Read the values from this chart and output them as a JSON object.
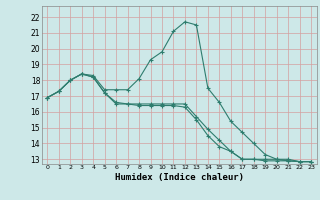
{
  "xlabel": "Humidex (Indice chaleur)",
  "background_color": "#cde8e8",
  "grid_color": "#d4a0a0",
  "line_color": "#2e7d6e",
  "xlim": [
    -0.5,
    23.5
  ],
  "ylim": [
    12.7,
    22.7
  ],
  "yticks": [
    13,
    14,
    15,
    16,
    17,
    18,
    19,
    20,
    21,
    22
  ],
  "xticks": [
    0,
    1,
    2,
    3,
    4,
    5,
    6,
    7,
    8,
    9,
    10,
    11,
    12,
    13,
    14,
    15,
    16,
    17,
    18,
    19,
    20,
    21,
    22,
    23
  ],
  "series": [
    {
      "x": [
        0,
        1,
        2,
        3,
        4,
        5,
        6,
        7,
        8,
        9,
        10,
        11,
        12,
        13,
        14,
        15,
        16,
        17,
        18,
        19,
        20,
        21,
        22,
        23
      ],
      "y": [
        16.9,
        17.3,
        18.0,
        18.4,
        18.3,
        17.4,
        17.4,
        17.4,
        18.1,
        19.3,
        19.8,
        21.1,
        21.7,
        21.5,
        17.5,
        16.6,
        15.4,
        14.7,
        14.0,
        13.3,
        13.0,
        12.9,
        12.85,
        12.85
      ]
    },
    {
      "x": [
        0,
        1,
        2,
        3,
        4,
        5,
        6,
        7,
        8,
        9,
        10,
        11,
        12,
        13,
        14,
        15,
        16,
        17,
        18,
        19,
        20,
        21,
        22,
        23
      ],
      "y": [
        16.9,
        17.3,
        18.0,
        18.4,
        18.2,
        17.2,
        16.5,
        16.5,
        16.5,
        16.5,
        16.5,
        16.5,
        16.5,
        15.7,
        14.9,
        14.2,
        13.5,
        13.0,
        13.0,
        13.0,
        13.0,
        13.0,
        12.85,
        12.85
      ]
    },
    {
      "x": [
        0,
        1,
        2,
        3,
        4,
        5,
        6,
        7,
        8,
        9,
        10,
        11,
        12,
        13,
        14,
        15,
        16,
        17,
        18,
        19,
        20,
        21,
        22,
        23
      ],
      "y": [
        16.9,
        17.3,
        18.0,
        18.4,
        18.2,
        17.2,
        16.6,
        16.5,
        16.4,
        16.4,
        16.4,
        16.4,
        16.3,
        15.5,
        14.5,
        13.8,
        13.5,
        13.0,
        13.0,
        12.9,
        12.9,
        12.9,
        12.85,
        12.85
      ]
    }
  ]
}
